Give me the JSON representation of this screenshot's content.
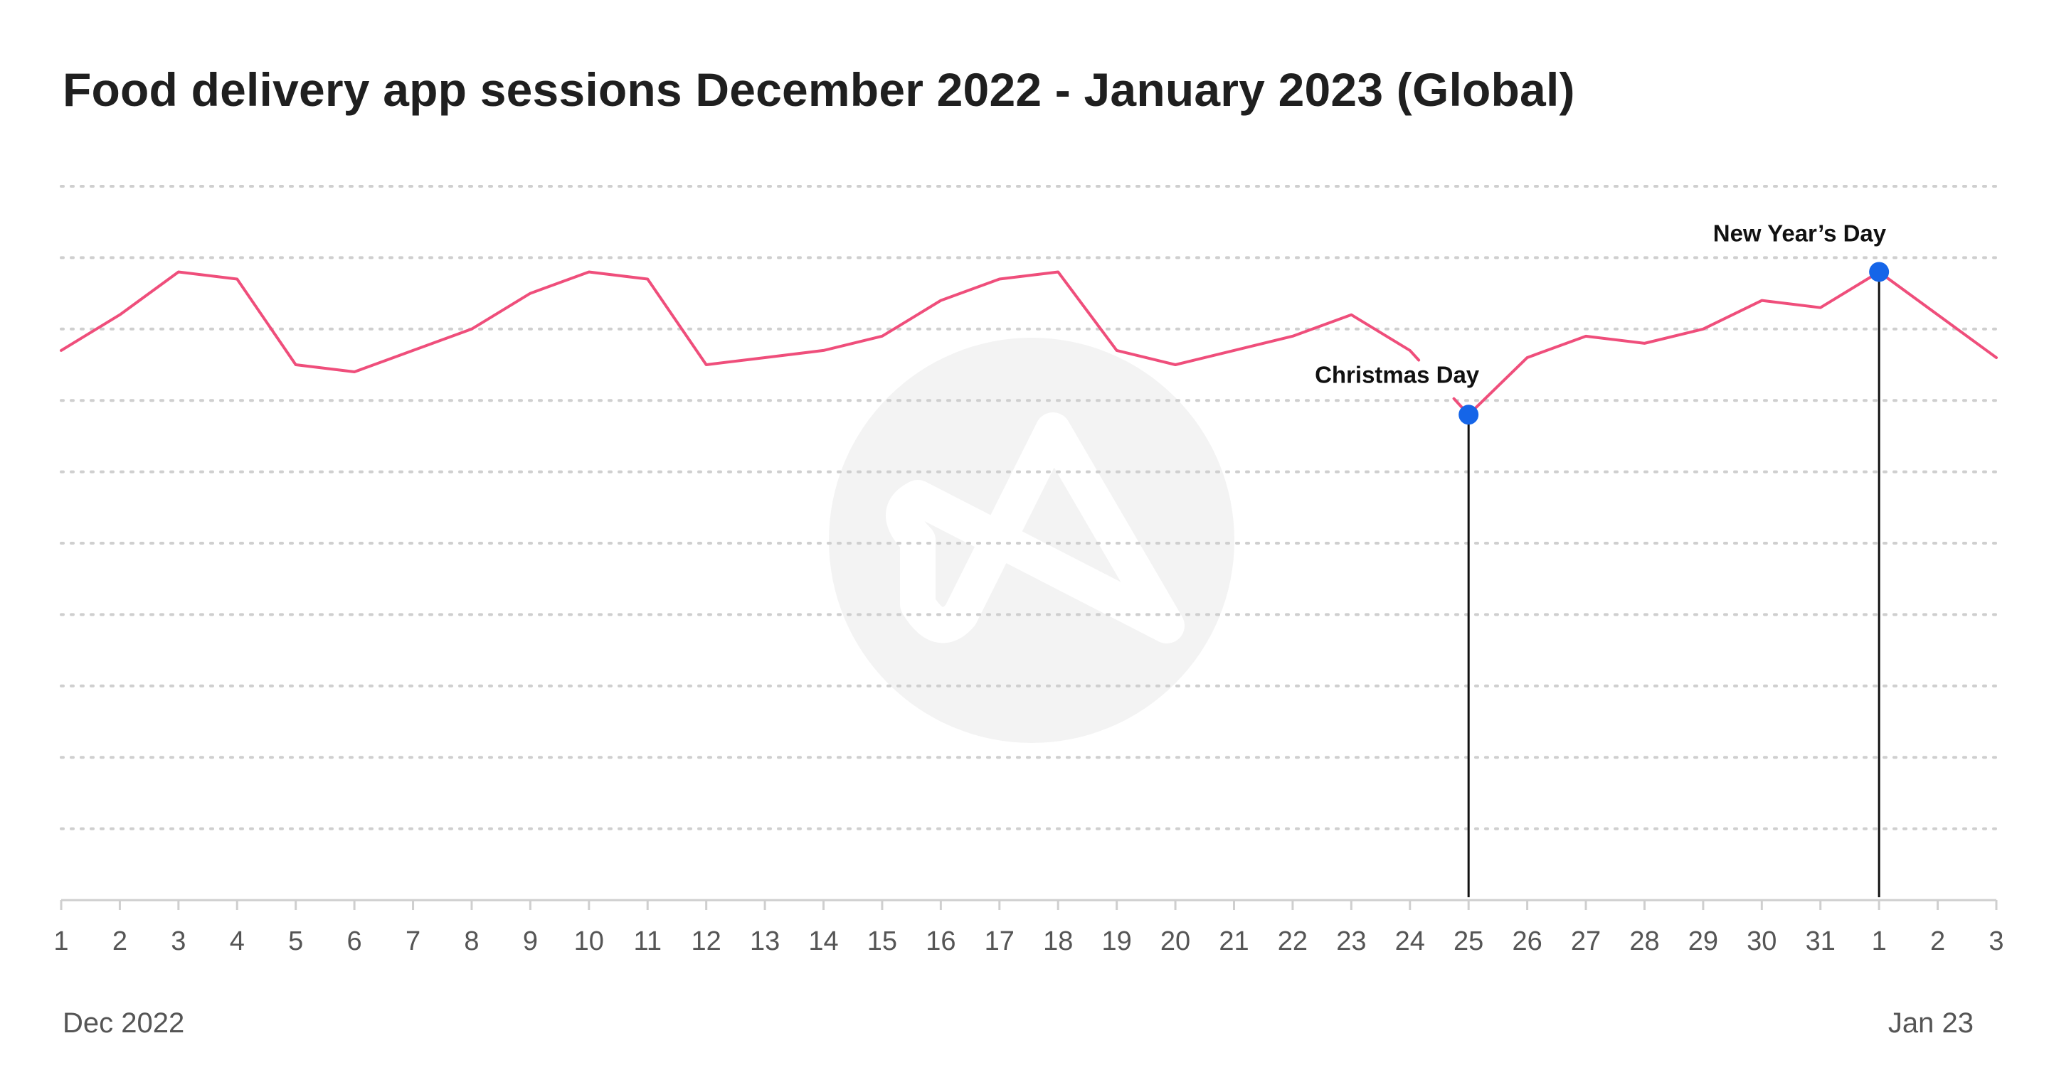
{
  "title": "Food delivery app sessions December 2022 - January 2023 (Global)",
  "colors": {
    "series": "#ef4e7b",
    "marker": "#1565e8",
    "gridline": "#cfcfcf",
    "axis": "#cfcfcf",
    "annotation_line": "#111111",
    "watermark": "#f3f3f3"
  },
  "watermark_icon": "logo-watermark-icon",
  "chart_data": {
    "type": "line",
    "title": "Food delivery app sessions December 2022 - January 2023 (Global)",
    "xlabel": "",
    "ylabel": "",
    "x_tick_labels": [
      "1",
      "2",
      "3",
      "4",
      "5",
      "6",
      "7",
      "8",
      "9",
      "10",
      "11",
      "12",
      "13",
      "14",
      "15",
      "16",
      "17",
      "18",
      "19",
      "20",
      "21",
      "22",
      "23",
      "24",
      "25",
      "26",
      "27",
      "28",
      "29",
      "30",
      "31",
      "1",
      "2",
      "3"
    ],
    "x_dates": [
      "2022-12-01",
      "2022-12-02",
      "2022-12-03",
      "2022-12-04",
      "2022-12-05",
      "2022-12-06",
      "2022-12-07",
      "2022-12-08",
      "2022-12-09",
      "2022-12-10",
      "2022-12-11",
      "2022-12-12",
      "2022-12-13",
      "2022-12-14",
      "2022-12-15",
      "2022-12-16",
      "2022-12-17",
      "2022-12-18",
      "2022-12-19",
      "2022-12-20",
      "2022-12-21",
      "2022-12-22",
      "2022-12-23",
      "2022-12-24",
      "2022-12-25",
      "2022-12-26",
      "2022-12-27",
      "2022-12-28",
      "2022-12-29",
      "2022-12-30",
      "2022-12-31",
      "2023-01-01",
      "2023-01-02",
      "2023-01-03"
    ],
    "period_labels": {
      "start": "Dec 2022",
      "end": "Jan 23"
    },
    "series": [
      {
        "values": [
          7.7,
          8.2,
          8.8,
          8.7,
          7.5,
          7.4,
          7.7,
          8.0,
          8.5,
          8.8,
          8.7,
          7.5,
          7.6,
          7.7,
          7.9,
          8.4,
          8.7,
          8.8,
          7.7,
          7.5,
          7.7,
          7.9,
          8.2,
          7.7,
          6.8,
          7.6,
          7.9,
          7.8,
          8.0,
          8.4,
          8.3,
          8.8,
          8.2,
          7.6
        ]
      }
    ],
    "ylim": [
      0,
      10
    ],
    "y_gridlines": 10,
    "grid": true,
    "annotations": [
      {
        "label": "Christmas Day",
        "index": 24
      },
      {
        "label": "New Year’s Day",
        "index": 31
      }
    ]
  }
}
